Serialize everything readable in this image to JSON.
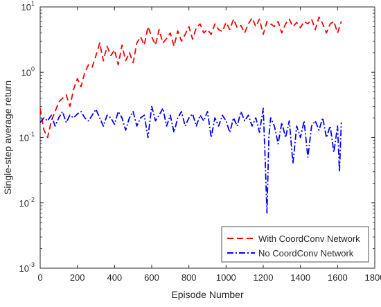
{
  "chart_data": {
    "type": "line",
    "title": "",
    "xlabel": "Episode Number",
    "ylabel": "Single-step average return",
    "xlim": [
      0,
      1800
    ],
    "ylim": [
      0.001,
      10
    ],
    "y_scale": "log",
    "xticks": [
      "0",
      "200",
      "400",
      "600",
      "800",
      "1000",
      "1200",
      "1400",
      "1600",
      "1800"
    ],
    "yticks": [
      {
        "base": "10",
        "exp": "-3"
      },
      {
        "base": "10",
        "exp": "-2"
      },
      {
        "base": "10",
        "exp": "-1"
      },
      {
        "base": "10",
        "exp": "0"
      },
      {
        "base": "10",
        "exp": "1"
      }
    ],
    "grid": false,
    "legend_position": "bottom-right",
    "series": [
      {
        "name": "With CoordConv Network",
        "color": "#ff0000",
        "style": "dashed",
        "x": [
          0,
          20,
          40,
          60,
          80,
          100,
          120,
          140,
          160,
          180,
          200,
          220,
          240,
          260,
          280,
          300,
          320,
          340,
          360,
          380,
          400,
          420,
          440,
          460,
          480,
          500,
          520,
          540,
          560,
          580,
          600,
          620,
          640,
          660,
          680,
          700,
          720,
          740,
          760,
          780,
          800,
          820,
          840,
          860,
          880,
          900,
          920,
          940,
          960,
          980,
          1000,
          1020,
          1040,
          1060,
          1080,
          1100,
          1120,
          1140,
          1160,
          1180,
          1200,
          1220,
          1240,
          1260,
          1280,
          1300,
          1320,
          1340,
          1360,
          1380,
          1400,
          1420,
          1440,
          1460,
          1480,
          1500,
          1520,
          1540,
          1560,
          1580,
          1600,
          1620
        ],
        "values": [
          0.28,
          0.13,
          0.1,
          0.18,
          0.25,
          0.35,
          0.4,
          0.45,
          0.3,
          0.55,
          0.8,
          0.6,
          1.0,
          1.3,
          1.2,
          1.8,
          2.8,
          1.5,
          2.5,
          1.8,
          2.2,
          1.3,
          2.6,
          1.5,
          2.0,
          1.4,
          2.8,
          3.5,
          2.6,
          5.0,
          3.5,
          2.6,
          4.5,
          2.8,
          3.3,
          4.0,
          2.5,
          4.3,
          3.0,
          3.8,
          5.0,
          3.2,
          4.8,
          5.5,
          4.0,
          4.5,
          3.8,
          5.5,
          4.5,
          4.2,
          5.8,
          4.5,
          6.5,
          4.8,
          5.2,
          4.0,
          5.5,
          6.8,
          5.0,
          6.5,
          3.8,
          6.0,
          5.5,
          5.0,
          6.0,
          4.0,
          5.5,
          6.5,
          5.0,
          5.8,
          4.8,
          6.0,
          5.5,
          6.5,
          4.5,
          7.0,
          5.5,
          4.0,
          5.5,
          6.0,
          4.0,
          6.0
        ]
      },
      {
        "name": "No CoordConv Network",
        "color": "#0000ff",
        "style": "dash-dot",
        "x": [
          0,
          20,
          40,
          60,
          80,
          100,
          120,
          140,
          160,
          180,
          200,
          220,
          240,
          260,
          280,
          300,
          320,
          340,
          360,
          380,
          400,
          420,
          440,
          460,
          480,
          500,
          520,
          540,
          560,
          580,
          600,
          620,
          640,
          660,
          680,
          700,
          720,
          740,
          760,
          780,
          800,
          820,
          840,
          860,
          880,
          900,
          920,
          940,
          960,
          980,
          1000,
          1020,
          1040,
          1060,
          1080,
          1100,
          1120,
          1140,
          1160,
          1180,
          1200,
          1210,
          1220,
          1230,
          1240,
          1260,
          1280,
          1300,
          1320,
          1340,
          1360,
          1380,
          1400,
          1420,
          1440,
          1460,
          1480,
          1500,
          1520,
          1540,
          1560,
          1580,
          1600,
          1610,
          1620
        ],
        "values": [
          0.17,
          0.2,
          0.18,
          0.22,
          0.15,
          0.2,
          0.25,
          0.17,
          0.22,
          0.2,
          0.23,
          0.25,
          0.2,
          0.18,
          0.22,
          0.27,
          0.2,
          0.15,
          0.22,
          0.2,
          0.16,
          0.25,
          0.2,
          0.13,
          0.2,
          0.25,
          0.15,
          0.2,
          0.22,
          0.1,
          0.3,
          0.18,
          0.22,
          0.28,
          0.15,
          0.22,
          0.12,
          0.2,
          0.25,
          0.15,
          0.2,
          0.23,
          0.15,
          0.22,
          0.18,
          0.25,
          0.1,
          0.2,
          0.15,
          0.22,
          0.18,
          0.12,
          0.2,
          0.15,
          0.25,
          0.18,
          0.22,
          0.15,
          0.2,
          0.12,
          0.28,
          0.05,
          0.007,
          0.1,
          0.2,
          0.15,
          0.08,
          0.17,
          0.1,
          0.18,
          0.04,
          0.15,
          0.1,
          0.18,
          0.05,
          0.15,
          0.18,
          0.13,
          0.2,
          0.1,
          0.15,
          0.06,
          0.15,
          0.03,
          0.17
        ]
      }
    ]
  }
}
